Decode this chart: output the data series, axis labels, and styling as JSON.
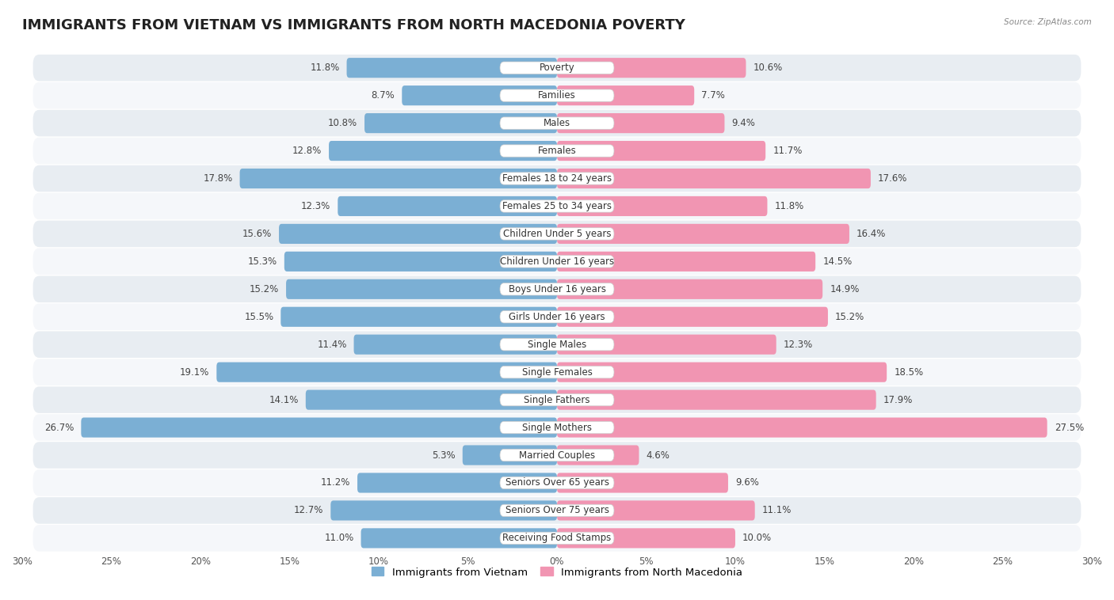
{
  "title": "IMMIGRANTS FROM VIETNAM VS IMMIGRANTS FROM NORTH MACEDONIA POVERTY",
  "source": "Source: ZipAtlas.com",
  "categories": [
    "Poverty",
    "Families",
    "Males",
    "Females",
    "Females 18 to 24 years",
    "Females 25 to 34 years",
    "Children Under 5 years",
    "Children Under 16 years",
    "Boys Under 16 years",
    "Girls Under 16 years",
    "Single Males",
    "Single Females",
    "Single Fathers",
    "Single Mothers",
    "Married Couples",
    "Seniors Over 65 years",
    "Seniors Over 75 years",
    "Receiving Food Stamps"
  ],
  "vietnam_values": [
    11.8,
    8.7,
    10.8,
    12.8,
    17.8,
    12.3,
    15.6,
    15.3,
    15.2,
    15.5,
    11.4,
    19.1,
    14.1,
    26.7,
    5.3,
    11.2,
    12.7,
    11.0
  ],
  "macedonia_values": [
    10.6,
    7.7,
    9.4,
    11.7,
    17.6,
    11.8,
    16.4,
    14.5,
    14.9,
    15.2,
    12.3,
    18.5,
    17.9,
    27.5,
    4.6,
    9.6,
    11.1,
    10.0
  ],
  "vietnam_color": "#7BAFD4",
  "macedonia_color": "#F195B2",
  "vietnam_label": "Immigrants from Vietnam",
  "macedonia_label": "Immigrants from North Macedonia",
  "xlim": 30.0,
  "bar_height": 0.72,
  "bg_color": "#ffffff",
  "row_alt_color": "#e8edf2",
  "row_main_color": "#f5f7fa",
  "title_fontsize": 13,
  "label_fontsize": 8.5,
  "value_fontsize": 8.5,
  "axis_label_fontsize": 8.5
}
